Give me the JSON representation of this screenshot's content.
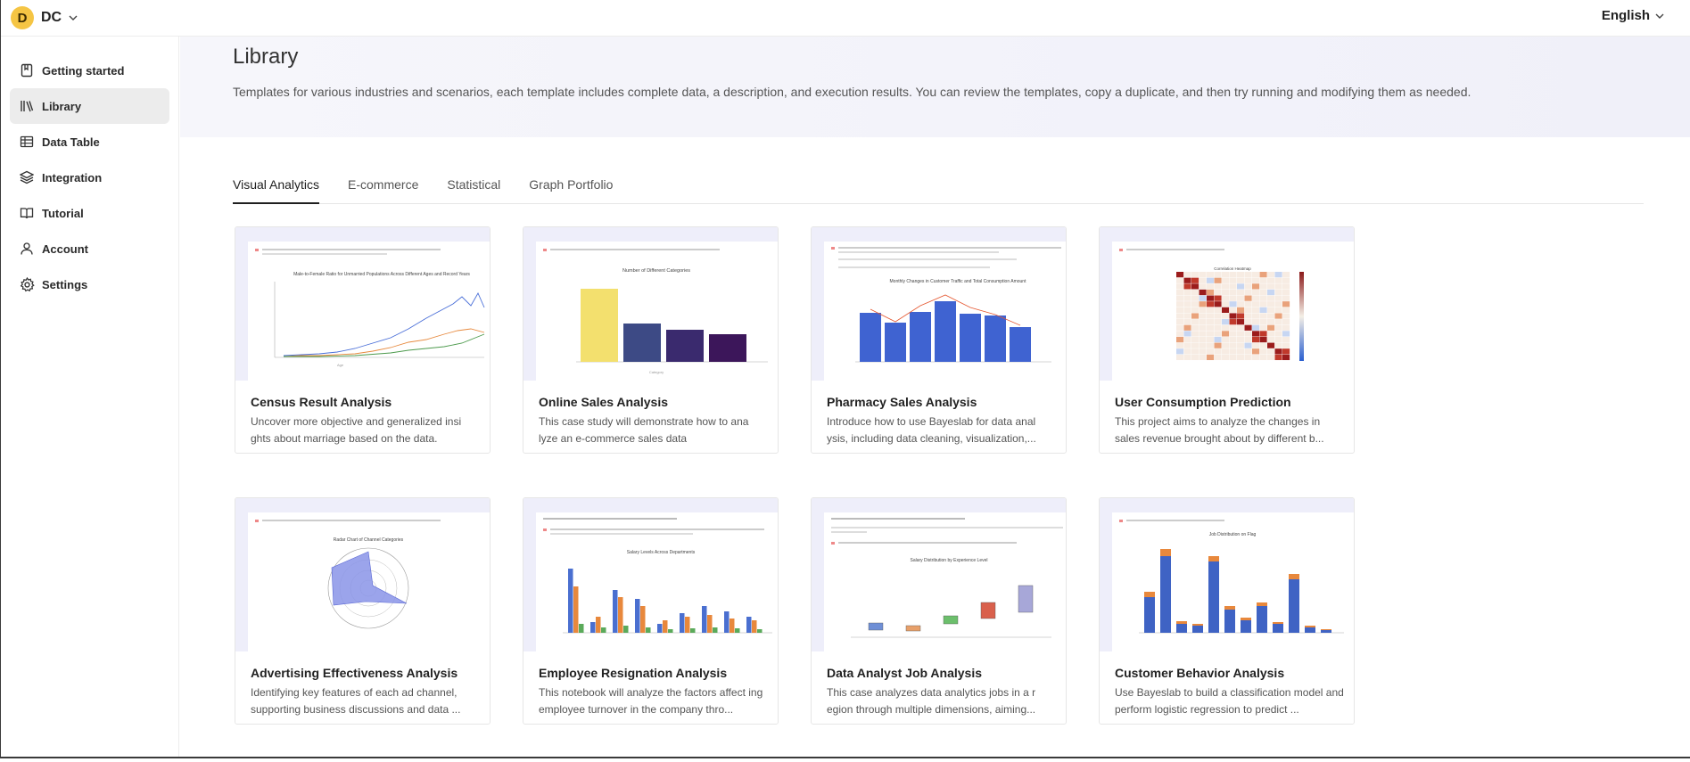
{
  "workspace": {
    "initial": "D",
    "name": "DC"
  },
  "language": "English",
  "sidebar": {
    "items": [
      {
        "label": "Getting started",
        "icon": "bookmark-icon"
      },
      {
        "label": "Library",
        "icon": "library-icon",
        "active": true
      },
      {
        "label": "Data Table",
        "icon": "table-icon"
      },
      {
        "label": "Integration",
        "icon": "layers-icon"
      },
      {
        "label": "Tutorial",
        "icon": "book-icon"
      },
      {
        "label": "Account",
        "icon": "user-icon"
      },
      {
        "label": "Settings",
        "icon": "gear-icon"
      }
    ]
  },
  "hero": {
    "title": "Library",
    "description": "Templates for various industries and scenarios, each template includes complete data, a description, and execution results. You can review the templates, copy a duplicate, and then try running and modifying them as needed."
  },
  "tabs": [
    {
      "label": "Visual Analytics",
      "active": true
    },
    {
      "label": "E-commerce"
    },
    {
      "label": "Statistical"
    },
    {
      "label": "Graph Portfolio"
    }
  ],
  "cards": [
    {
      "title": "Census Result Analysis",
      "description": "Uncover more objective and generalized insi ghts about marriage based on the data.",
      "thumb_title": "Male-to-Female Ratio for Unmarried Populations Across Different Ages and Record Years"
    },
    {
      "title": "Online Sales Analysis",
      "description": "This case study will demonstrate how to ana lyze an e-commerce sales data",
      "thumb_title": "Number of Different Categories"
    },
    {
      "title": "Pharmacy Sales Analysis",
      "description": "Introduce how to use Bayeslab for data anal ysis, including data cleaning, visualization,...",
      "thumb_title": "Monthly Changes in Customer Traffic and Total Consumption Amount"
    },
    {
      "title": "User Consumption Prediction",
      "description": "This project aims to analyze the changes in sales revenue brought about by different b...",
      "thumb_title": "Correlation Heatmap"
    },
    {
      "title": "Advertising Effectiveness Analysis",
      "description": "Identifying key features of each ad channel, supporting business discussions and data ...",
      "thumb_title": "Radar Chart of Channel Categories"
    },
    {
      "title": "Employee Resignation Analysis",
      "description": "This notebook will analyze the factors affect ing employee turnover in the company thro...",
      "thumb_title": "Salary Levels Across Departments"
    },
    {
      "title": "Data Analyst Job Analysis",
      "description": "This case analyzes data analytics jobs in a r egion through multiple dimensions, aiming...",
      "thumb_title": "Salary Distribution by Experience Level"
    },
    {
      "title": "Customer Behavior Analysis",
      "description": "Use Bayeslab to build a classification model and perform logistic regression  to predict ...",
      "thumb_title": "Job Distribution on Flag"
    }
  ]
}
